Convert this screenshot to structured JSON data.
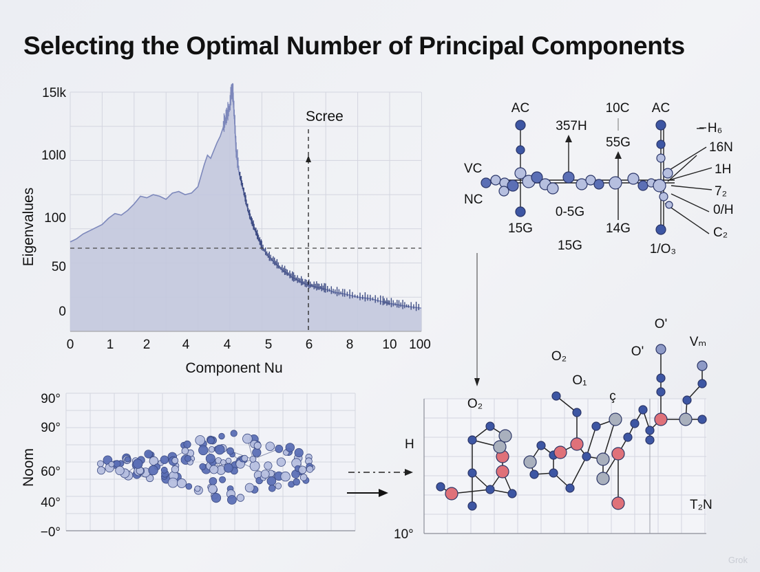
{
  "title": "Selecting the Optimal Number of Principal Components",
  "watermark": "Grok",
  "colors": {
    "area_fill": "#c3c8de",
    "area_line": "#7d88bb",
    "dark_line": "#3e4c84",
    "node_blue": "#3d56a3",
    "node_light": "#b6bfdf",
    "node_gray": "#a9b0bd",
    "node_pink": "#df7179",
    "grid": "#d3d5df"
  },
  "chart_data": {
    "type": "area",
    "title": "",
    "xlabel": "Component Nu",
    "ylabel": "Eigenvalues",
    "x_ticks": [
      "0",
      "1",
      "2",
      "4",
      "4",
      "5",
      "6",
      "8",
      "10",
      "100"
    ],
    "y_ticks": [
      "15lk",
      "10l0",
      "100",
      "50",
      "0"
    ],
    "annotation": "Scree",
    "cutoff_component": 6,
    "x": [
      0,
      0.2,
      0.4,
      0.6,
      0.8,
      1,
      1.2,
      1.4,
      1.6,
      1.8,
      2,
      2.2,
      2.4,
      2.6,
      2.8,
      3,
      3.2,
      3.4,
      3.6,
      3.8,
      4,
      4.1,
      4.2,
      4.3,
      4.4,
      4.5,
      4.6,
      4.7,
      4.8,
      4.9,
      5,
      5.05,
      5.1,
      5.15,
      5.2,
      5.3,
      5.4,
      5.5,
      5.6,
      5.7,
      5.8,
      5.9,
      6,
      6.2,
      6.4,
      6.6,
      6.8,
      7,
      7.2,
      7.4,
      7.6,
      7.8,
      8,
      8.3,
      8.6,
      9,
      9.4,
      9.8,
      10,
      10.3,
      10.6,
      11
    ],
    "values": [
      55,
      57,
      60,
      62,
      64,
      66,
      70,
      73,
      72,
      75,
      79,
      84,
      83,
      85,
      84,
      82,
      86,
      87,
      85,
      86,
      90,
      97,
      104,
      110,
      108,
      113,
      118,
      122,
      128,
      134,
      140,
      150,
      148,
      132,
      112,
      98,
      90,
      81,
      73,
      67,
      62,
      57,
      52,
      46,
      42,
      38,
      35,
      32,
      30,
      28,
      27,
      26,
      25,
      23,
      22,
      20,
      19,
      17,
      16,
      15,
      14,
      13
    ]
  },
  "scatter_plot": {
    "ylabel": "Noom",
    "y_ticks": [
      "90°",
      "90°",
      "60°",
      "40°",
      "−0°"
    ]
  },
  "molecule_top": {
    "labels_top": [
      "AC",
      "10C",
      "AC"
    ],
    "labels_left": [
      "VC",
      "NC"
    ],
    "labels_middle": [
      "357H",
      "55G",
      "0-5G",
      "15G",
      "14G",
      "15G",
      "1/O₃"
    ],
    "labels_right": [
      "– H₆",
      "16N",
      "1H",
      "7₂",
      "0/H",
      "C₂"
    ]
  },
  "network_plot": {
    "labels": [
      "O₂",
      "O₂",
      "O₁",
      "ç",
      "O'",
      "O'",
      "Vₘ",
      "H",
      "T₂N",
      "10°"
    ]
  }
}
